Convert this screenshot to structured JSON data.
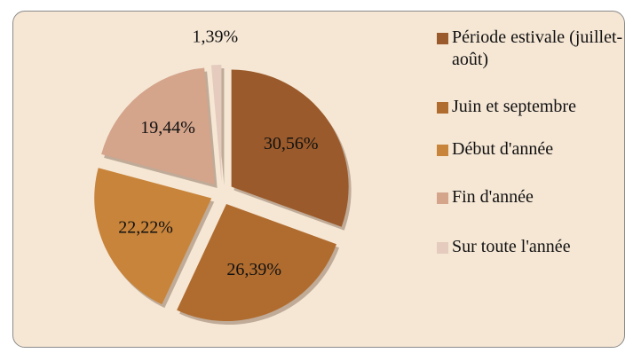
{
  "chart_data": {
    "type": "pie",
    "categories": [
      "Période estivale (juillet-août)",
      "Juin et septembre",
      "Début d'année",
      "Fin d'année",
      "Sur toute l'année"
    ],
    "values": [
      30.56,
      26.39,
      22.22,
      19.44,
      1.39
    ],
    "value_labels": [
      "30,56%",
      "26,39%",
      "22,22%",
      "19,44%",
      "1,39%"
    ],
    "colors": [
      "#9a5a2b",
      "#b06c2f",
      "#c8843a",
      "#d4a48b",
      "#e4cbbd"
    ],
    "legend": "right"
  }
}
